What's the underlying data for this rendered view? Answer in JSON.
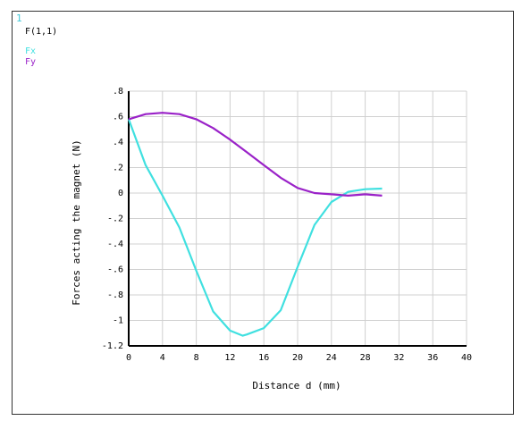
{
  "header": {
    "window_number": "1",
    "function_label": "F(1,1)"
  },
  "colors": {
    "fx": "#40e0e0",
    "fy": "#9a22c8",
    "grid": "#d0d0d0",
    "axis": "#000000",
    "text": "#000000",
    "window_number": "#40c8d8"
  },
  "chart_data": {
    "type": "line",
    "xlabel": "Distance d (mm)",
    "ylabel": "Forces acting the magnet (N)",
    "xlim": [
      0,
      40
    ],
    "ylim": [
      -1.2,
      0.8
    ],
    "grid": true,
    "legend_placement": "top-left",
    "x_ticks": [
      0,
      4,
      8,
      12,
      16,
      20,
      24,
      28,
      32,
      36,
      40
    ],
    "x_tick_labels": [
      "0",
      "4",
      "8",
      "12",
      "16",
      "20",
      "24",
      "28",
      "32",
      "36",
      "40"
    ],
    "y_ticks": [
      0.8,
      0.6,
      0.4,
      0.2,
      0,
      -0.2,
      -0.4,
      -0.6,
      -0.8,
      -1,
      -1.2
    ],
    "y_tick_labels": [
      ".8",
      ".6",
      ".4",
      ".2",
      "0",
      "-.2",
      "-.4",
      "-.6",
      "-.8",
      "-1",
      "-1.2"
    ],
    "series": [
      {
        "name": "Fx",
        "color": "#40e0e0",
        "x": [
          0,
          2,
          4,
          6,
          8,
          10,
          12,
          13.5,
          14,
          16,
          18,
          20,
          22,
          24,
          26,
          28,
          30
        ],
        "y": [
          0.58,
          0.22,
          -0.02,
          -0.27,
          -0.61,
          -0.93,
          -1.08,
          -1.12,
          -1.11,
          -1.06,
          -0.92,
          -0.58,
          -0.25,
          -0.07,
          0.01,
          0.03,
          0.035
        ]
      },
      {
        "name": "Fy",
        "color": "#9a22c8",
        "x": [
          0,
          2,
          4,
          6,
          8,
          10,
          12,
          14,
          16,
          18,
          20,
          22,
          24,
          26,
          28,
          30
        ],
        "y": [
          0.58,
          0.62,
          0.63,
          0.62,
          0.58,
          0.51,
          0.42,
          0.32,
          0.22,
          0.12,
          0.04,
          0.0,
          -0.01,
          -0.02,
          -0.01,
          -0.02
        ]
      }
    ]
  }
}
